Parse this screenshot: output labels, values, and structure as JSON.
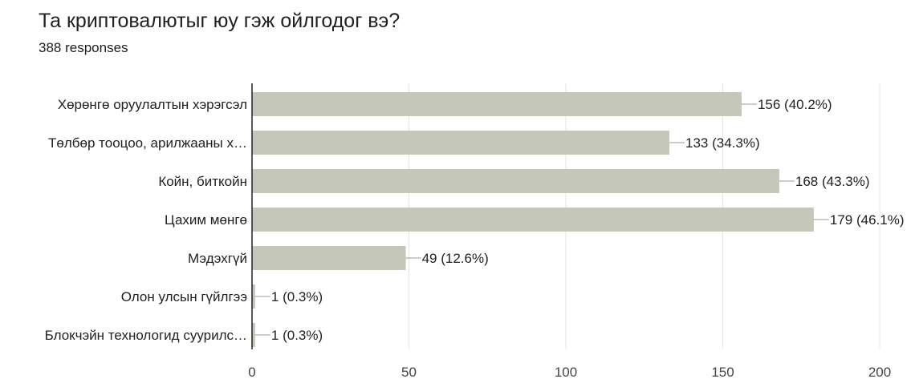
{
  "question": {
    "title": "Та криптовалютыг юу гэж ойлгодог вэ?",
    "responses": "388 responses"
  },
  "colors": {
    "bar": "#c5c8b8",
    "grid": "#e6e6e6",
    "axis": "#202124",
    "leader": "#999999"
  },
  "chart_data": {
    "type": "bar",
    "orientation": "horizontal",
    "categories": [
      "Хөрөнгө оруулалтын хэрэгсэл",
      "Төлбөр тооцоо, арилжааны х…",
      "Койн, биткойн",
      "Цахим мөнгө",
      "Мэдэхгүй",
      "Олон улсын гүйлгээ",
      "Блокчэйн технологид суурилс…"
    ],
    "values": [
      156,
      133,
      168,
      179,
      49,
      1,
      1
    ],
    "value_labels": [
      "156 (40.2%)",
      "133 (34.3%)",
      "168 (43.3%)",
      "179 (46.1%)",
      "49 (12.6%)",
      "1 (0.3%)",
      "1 (0.3%)"
    ],
    "xlim": [
      0,
      200
    ],
    "xticks": [
      0,
      50,
      100,
      150,
      200
    ],
    "grid": true
  }
}
